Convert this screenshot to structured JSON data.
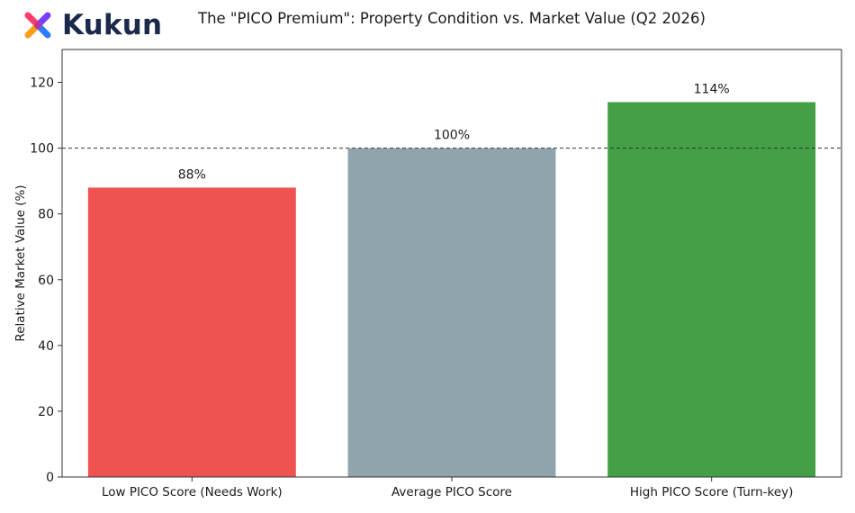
{
  "brand": {
    "name": "Kukun",
    "colors": [
      "#ff3b6b",
      "#7a3cff",
      "#ff9b1a",
      "#2c7cff"
    ]
  },
  "chart_data": {
    "type": "bar",
    "title": "The \"PICO Premium\": Property Condition vs. Market Value (Q2 2026)",
    "ylabel": "Relative Market Value (%)",
    "xlabel": "",
    "categories": [
      "Low PICO Score (Needs Work)",
      "Average PICO Score",
      "High PICO Score (Turn-key)"
    ],
    "values": [
      88,
      100,
      114
    ],
    "value_labels": [
      "88%",
      "100%",
      "114%"
    ],
    "colors": [
      "#ef5350",
      "#90a4ae",
      "#43a047"
    ],
    "ylim": [
      0,
      130
    ],
    "yticks": [
      0,
      20,
      40,
      60,
      80,
      100,
      120
    ],
    "reference_line": {
      "value": 100,
      "style": "dashed"
    },
    "grid": false,
    "legend": "none"
  }
}
